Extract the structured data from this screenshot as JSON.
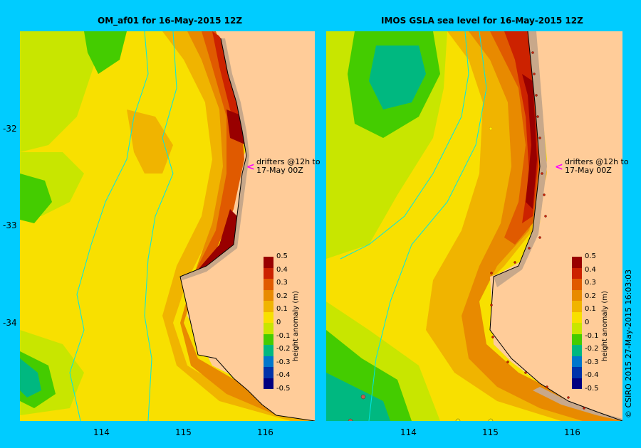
{
  "panels": {
    "left": {
      "title": "OM_af01  for 16-May-2015 12Z"
    },
    "right": {
      "title": "IMOS GSLA sea level  for 16-May-2015 12Z"
    }
  },
  "axes": {
    "y_ticks": [
      "-32",
      "-33",
      "-34"
    ],
    "x_ticks": [
      "114",
      "115",
      "116"
    ]
  },
  "drifters": {
    "line1": "drifters @12h to",
    "line2": "17-May 00Z",
    "arrow": "<"
  },
  "colorbar": {
    "title": "height anomaly  (m)",
    "labels": [
      "0.5",
      "0.4",
      "0.3",
      "0.2",
      "0.1",
      "0",
      "-0.1",
      "-0.2",
      "-0.3",
      "-0.4",
      "-0.5"
    ],
    "colors": [
      "#990000",
      "#cc2200",
      "#e05a00",
      "#e88a00",
      "#f0b400",
      "#f8e000",
      "#c8e600",
      "#44cc00",
      "#00b880",
      "#0077cc",
      "#0033aa",
      "#000080"
    ]
  },
  "credit": "© CSIRO 2015   27-May-2015 16:03:03"
}
